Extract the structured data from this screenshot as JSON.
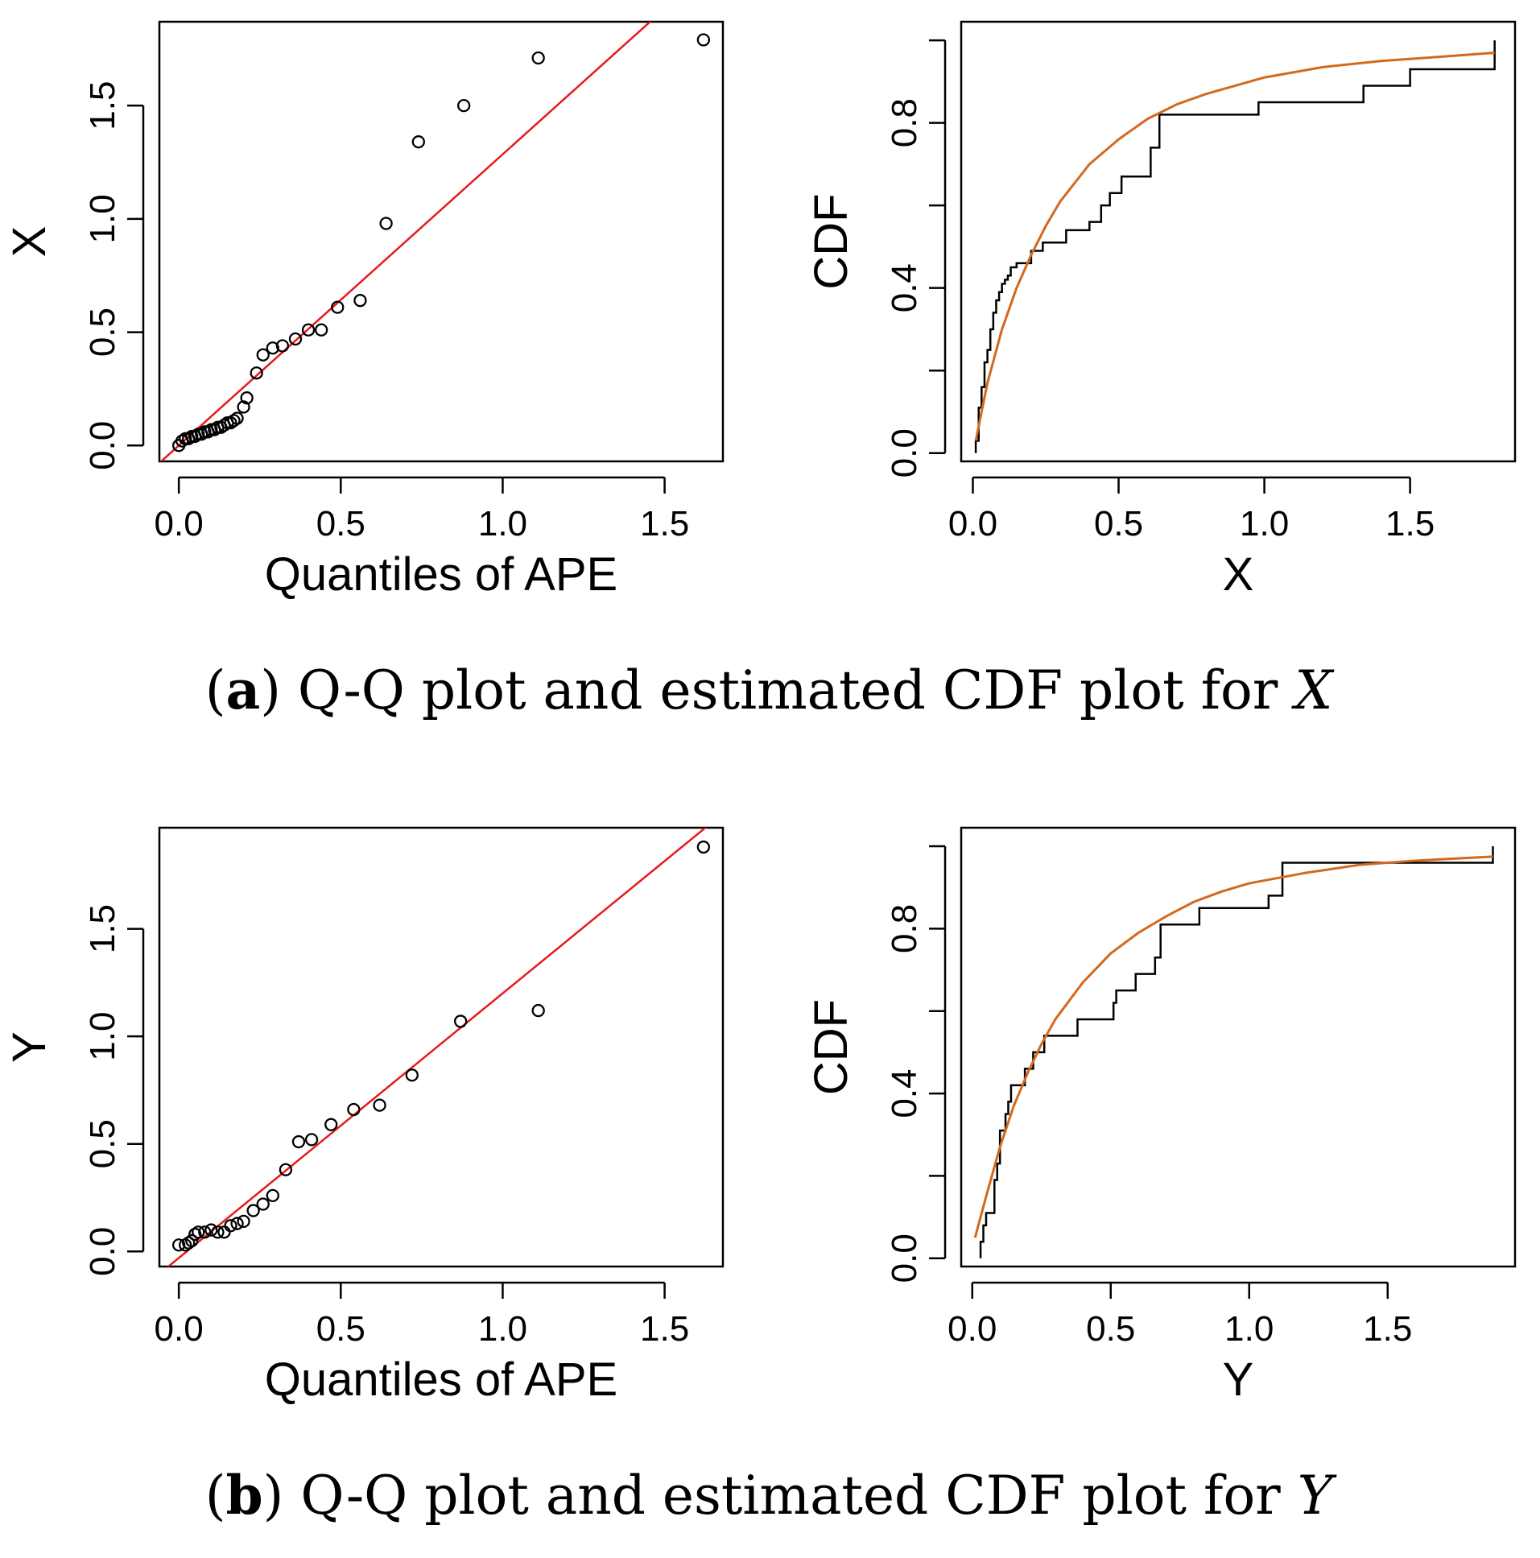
{
  "colors": {
    "reference_line": "#e8191a",
    "fitted_cdf": "#d2691e",
    "points": "#000000",
    "frame": "#000000"
  },
  "captions": [
    {
      "letter": "a",
      "open": "(",
      "close": ")",
      "text": " Q-Q plot and estimated CDF plot for ",
      "var": "X"
    },
    {
      "letter": "b",
      "open": "(",
      "close": ")",
      "text": " Q-Q plot and estimated CDF plot for ",
      "var": "Y"
    }
  ],
  "chart_data": [
    {
      "id": "qq-x",
      "type": "scatter",
      "title": "",
      "xlabel": "Quantiles of APE",
      "ylabel": "X",
      "xlim": [
        -0.06,
        1.68
      ],
      "ylim": [
        -0.07,
        1.87
      ],
      "xticks": [
        "0.0",
        "0.5",
        "1.0",
        "1.5"
      ],
      "yticks": [
        "0.0",
        "0.5",
        "1.0",
        "1.5"
      ],
      "x": [
        0.0,
        0.01,
        0.02,
        0.03,
        0.04,
        0.05,
        0.06,
        0.07,
        0.08,
        0.09,
        0.1,
        0.11,
        0.12,
        0.13,
        0.14,
        0.15,
        0.16,
        0.17,
        0.18,
        0.2,
        0.21,
        0.24,
        0.26,
        0.29,
        0.32,
        0.36,
        0.4,
        0.44,
        0.49,
        0.56,
        0.64,
        0.74,
        0.88,
        1.11,
        1.62
      ],
      "y": [
        0.0,
        0.02,
        0.03,
        0.03,
        0.04,
        0.04,
        0.05,
        0.05,
        0.06,
        0.06,
        0.07,
        0.07,
        0.08,
        0.08,
        0.09,
        0.1,
        0.1,
        0.11,
        0.12,
        0.17,
        0.21,
        0.32,
        0.4,
        0.43,
        0.44,
        0.47,
        0.51,
        0.51,
        0.61,
        0.64,
        0.98,
        1.34,
        1.5,
        1.71,
        1.79
      ],
      "reference_line": {
        "intercept": 0.0,
        "slope": 1.285
      }
    },
    {
      "id": "cdf-x",
      "type": "line",
      "title": "",
      "xlabel": "X",
      "ylabel": "CDF",
      "xlim": [
        -0.04,
        1.86
      ],
      "ylim": [
        -0.02,
        1.045
      ],
      "xticks": [
        "0.0",
        "0.5",
        "1.0",
        "1.5"
      ],
      "yticks": [
        "0.0",
        "0.4",
        "0.8"
      ],
      "ytick_values": [
        0.0,
        0.2,
        0.4,
        0.6,
        0.8,
        1.0
      ],
      "ecdf_jumps": [
        0.01,
        0.02,
        0.03,
        0.04,
        0.05,
        0.06,
        0.07,
        0.08,
        0.09,
        0.1,
        0.11,
        0.12,
        0.13,
        0.15,
        0.2,
        0.24,
        0.32,
        0.4,
        0.44,
        0.47,
        0.51,
        0.61,
        0.64,
        0.98,
        1.34,
        1.5,
        1.79
      ],
      "ecdf_values": [
        0.03,
        0.11,
        0.16,
        0.22,
        0.25,
        0.3,
        0.34,
        0.37,
        0.39,
        0.41,
        0.42,
        0.43,
        0.45,
        0.46,
        0.49,
        0.51,
        0.54,
        0.56,
        0.6,
        0.63,
        0.67,
        0.74,
        0.82,
        0.85,
        0.89,
        0.93,
        0.96
      ],
      "ecdf_start": 0.0,
      "ecdf_end": 1.0,
      "fitted_cdf_points": [
        [
          0.01,
          0.03
        ],
        [
          0.05,
          0.17
        ],
        [
          0.1,
          0.3
        ],
        [
          0.15,
          0.4
        ],
        [
          0.2,
          0.48
        ],
        [
          0.25,
          0.55
        ],
        [
          0.3,
          0.61
        ],
        [
          0.4,
          0.7
        ],
        [
          0.5,
          0.76
        ],
        [
          0.6,
          0.81
        ],
        [
          0.7,
          0.845
        ],
        [
          0.8,
          0.87
        ],
        [
          0.9,
          0.89
        ],
        [
          1.0,
          0.91
        ],
        [
          1.2,
          0.935
        ],
        [
          1.4,
          0.95
        ],
        [
          1.6,
          0.96
        ],
        [
          1.79,
          0.97
        ]
      ]
    },
    {
      "id": "qq-y",
      "type": "scatter",
      "title": "",
      "xlabel": "Quantiles of APE",
      "ylabel": "Y",
      "xlim": [
        -0.06,
        1.68
      ],
      "ylim": [
        -0.07,
        1.97
      ],
      "xticks": [
        "0.0",
        "0.5",
        "1.0",
        "1.5"
      ],
      "yticks": [
        "0.0",
        "0.5",
        "1.0",
        "1.5"
      ],
      "x": [
        0.0,
        0.02,
        0.03,
        0.04,
        0.05,
        0.06,
        0.08,
        0.1,
        0.12,
        0.14,
        0.16,
        0.18,
        0.2,
        0.23,
        0.26,
        0.29,
        0.33,
        0.37,
        0.41,
        0.47,
        0.54,
        0.62,
        0.72,
        0.87,
        1.11,
        1.62
      ],
      "y": [
        0.03,
        0.03,
        0.04,
        0.05,
        0.08,
        0.09,
        0.09,
        0.1,
        0.09,
        0.09,
        0.12,
        0.13,
        0.14,
        0.19,
        0.22,
        0.26,
        0.38,
        0.51,
        0.52,
        0.59,
        0.66,
        0.68,
        0.82,
        1.07,
        1.12,
        1.88
      ],
      "reference_line": {
        "intercept": -0.03,
        "slope": 1.23
      }
    },
    {
      "id": "cdf-y",
      "type": "line",
      "title": "",
      "xlabel": "Y",
      "ylabel": "CDF",
      "xlim": [
        -0.04,
        1.96
      ],
      "ylim": [
        -0.02,
        1.045
      ],
      "xticks": [
        "0.0",
        "0.5",
        "1.0",
        "1.5"
      ],
      "yticks": [
        "0.0",
        "0.4",
        "0.8"
      ],
      "ytick_values": [
        0.0,
        0.2,
        0.4,
        0.6,
        0.8,
        1.0
      ],
      "ecdf_jumps": [
        0.03,
        0.04,
        0.05,
        0.08,
        0.09,
        0.1,
        0.12,
        0.13,
        0.14,
        0.19,
        0.22,
        0.26,
        0.38,
        0.51,
        0.52,
        0.59,
        0.66,
        0.68,
        0.82,
        1.07,
        1.12,
        1.88
      ],
      "ecdf_values": [
        0.04,
        0.08,
        0.11,
        0.19,
        0.23,
        0.31,
        0.35,
        0.38,
        0.42,
        0.46,
        0.5,
        0.54,
        0.58,
        0.62,
        0.65,
        0.69,
        0.73,
        0.81,
        0.85,
        0.88,
        0.96,
        1.0
      ],
      "ecdf_start": 0.0,
      "fitted_cdf_points": [
        [
          0.01,
          0.05
        ],
        [
          0.05,
          0.15
        ],
        [
          0.1,
          0.27
        ],
        [
          0.15,
          0.37
        ],
        [
          0.2,
          0.45
        ],
        [
          0.25,
          0.52
        ],
        [
          0.3,
          0.58
        ],
        [
          0.4,
          0.67
        ],
        [
          0.5,
          0.74
        ],
        [
          0.6,
          0.79
        ],
        [
          0.7,
          0.83
        ],
        [
          0.8,
          0.865
        ],
        [
          0.9,
          0.89
        ],
        [
          1.0,
          0.91
        ],
        [
          1.2,
          0.935
        ],
        [
          1.4,
          0.955
        ],
        [
          1.6,
          0.965
        ],
        [
          1.88,
          0.975
        ]
      ]
    }
  ]
}
